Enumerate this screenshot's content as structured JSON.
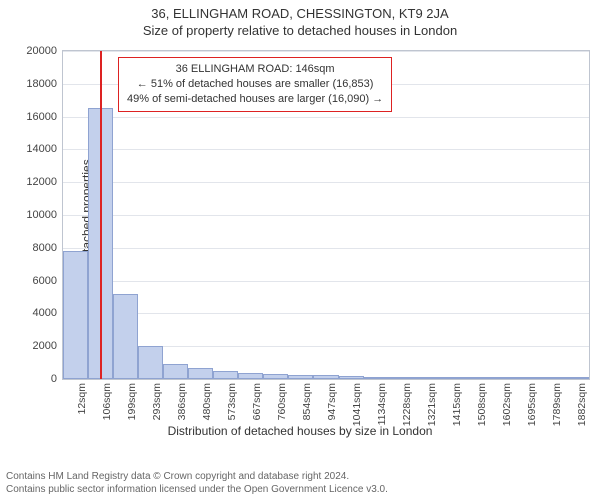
{
  "title_line1": "36, ELLINGHAM ROAD, CHESSINGTON, KT9 2JA",
  "title_line2": "Size of property relative to detached houses in London",
  "ylabel": "Number of detached properties",
  "xlabel": "Distribution of detached houses by size in London",
  "chart": {
    "type": "histogram",
    "background_color": "#ffffff",
    "grid_color": "#e2e5eb",
    "axis_color": "#bfc5d0",
    "bar_fill": "#c3d0ec",
    "bar_border": "#8fa3d1",
    "marker_color": "#d22",
    "ylim": [
      0,
      20000
    ],
    "ytick_step": 2000,
    "yticks": [
      0,
      2000,
      4000,
      6000,
      8000,
      10000,
      12000,
      14000,
      16000,
      18000,
      20000
    ],
    "xticks": [
      "12sqm",
      "106sqm",
      "199sqm",
      "293sqm",
      "386sqm",
      "480sqm",
      "573sqm",
      "667sqm",
      "760sqm",
      "854sqm",
      "947sqm",
      "1041sqm",
      "1134sqm",
      "1228sqm",
      "1321sqm",
      "1415sqm",
      "1508sqm",
      "1602sqm",
      "1695sqm",
      "1789sqm",
      "1882sqm"
    ],
    "bars": [
      7800,
      16500,
      5200,
      2000,
      900,
      650,
      500,
      350,
      300,
      250,
      220,
      180,
      150,
      130,
      100,
      80,
      65,
      55,
      45,
      35,
      25
    ],
    "marker_position_sqm": 146,
    "xrange": [
      12,
      1924
    ],
    "annotation": {
      "line1": "36 ELLINGHAM ROAD: 146sqm",
      "line2": "← 51% of detached houses are smaller (16,853)",
      "line3": "49% of semi-detached houses are larger (16,090) →"
    }
  },
  "footer_line1": "Contains HM Land Registry data © Crown copyright and database right 2024.",
  "footer_line2": "Contains public sector information licensed under the Open Government Licence v3.0.",
  "fonts": {
    "title_size": 13,
    "axis_label_size": 12,
    "tick_size": 11,
    "annot_size": 11,
    "footer_size": 10
  }
}
